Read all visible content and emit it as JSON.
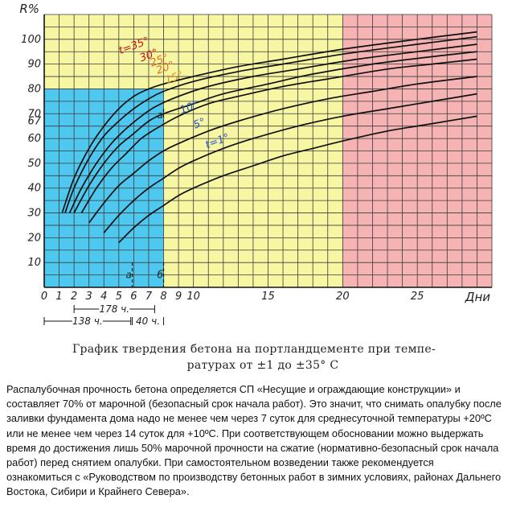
{
  "chart_data": {
    "type": "line",
    "xlabel": "Дни",
    "ylabel": "R%",
    "xlim": [
      0,
      30
    ],
    "ylim": [
      0,
      110
    ],
    "x_ticks": [
      "0",
      "1",
      "2",
      "3",
      "4",
      "5",
      "6",
      "7",
      "8",
      "9",
      "10",
      "15",
      "20",
      "25"
    ],
    "y_ticks": [
      "10",
      "20",
      "30",
      "40",
      "50",
      "60",
      "67",
      "70",
      "80",
      "90",
      "100"
    ],
    "zones": [
      {
        "from_x": 0,
        "to_x": 8,
        "to_y": 80,
        "color": "#4ec8ee"
      },
      {
        "from_x": 0,
        "to_x": 20,
        "to_y": 110,
        "color": "#f7f7a3"
      },
      {
        "from_x": 20,
        "to_x": 30,
        "to_y": 110,
        "color": "#f5b3b3"
      }
    ],
    "series": [
      {
        "name": "t=35°",
        "label_color": "#cc1111",
        "x": [
          1.2,
          2,
          3,
          4,
          5,
          6,
          7,
          8,
          10,
          13,
          16,
          20,
          25,
          29
        ],
        "y": [
          30,
          44,
          56,
          65,
          72,
          77,
          80,
          82,
          85,
          89,
          92,
          96,
          100,
          103
        ]
      },
      {
        "name": "30°",
        "label_color": "#cc1111",
        "x": [
          1.4,
          2,
          3,
          4,
          5,
          6,
          7,
          8,
          10,
          13,
          16,
          20,
          25,
          29
        ],
        "y": [
          30,
          40,
          52,
          61,
          67,
          72,
          76,
          79,
          83,
          87,
          90,
          94,
          98,
          101
        ]
      },
      {
        "name": "25°",
        "label_color": "#e07020",
        "x": [
          1.7,
          2.5,
          3.5,
          4.5,
          5.5,
          6.5,
          7.5,
          9,
          11,
          14,
          17,
          21,
          25,
          29
        ],
        "y": [
          30,
          40,
          50,
          58,
          64,
          69,
          73,
          77,
          81,
          85,
          88,
          92,
          95,
          98
        ]
      },
      {
        "name": "20°",
        "label_color": "#e07020",
        "x": [
          2,
          3,
          4,
          5,
          6,
          7,
          8,
          10,
          12,
          15,
          18,
          22,
          26,
          29
        ],
        "y": [
          30,
          41,
          50,
          57,
          62,
          67,
          70,
          74,
          78,
          82,
          86,
          90,
          93,
          95
        ]
      },
      {
        "name": "15°",
        "label_color": "#e09020",
        "x": [
          2.5,
          3.5,
          4.5,
          5.5,
          6.5,
          7.5,
          9,
          11,
          13,
          16,
          19,
          23,
          26,
          29
        ],
        "y": [
          30,
          40,
          48,
          54,
          60,
          64,
          69,
          74,
          77,
          81,
          84,
          88,
          90,
          92
        ]
      },
      {
        "name": "10°",
        "label_color": "#2255cc",
        "x": [
          3,
          4,
          5,
          6,
          7,
          8,
          9,
          11,
          13,
          16,
          19,
          22,
          25,
          29
        ],
        "y": [
          26,
          34,
          41,
          46,
          51,
          55,
          58,
          63,
          67,
          72,
          76,
          79,
          82,
          85
        ]
      },
      {
        "name": "5°",
        "label_color": "#2255cc",
        "x": [
          4,
          5,
          6,
          7,
          8,
          9,
          10,
          12,
          14,
          17,
          20,
          23,
          26,
          29
        ],
        "y": [
          22,
          29,
          35,
          40,
          44,
          48,
          51,
          56,
          60,
          65,
          69,
          72,
          75,
          78
        ]
      },
      {
        "name": "t=1°",
        "label_color": "#2255cc",
        "x": [
          5,
          6,
          7,
          8,
          9,
          10,
          12,
          14,
          16,
          18,
          20,
          23,
          26,
          29
        ],
        "y": [
          18,
          24,
          29,
          33,
          37,
          40,
          45,
          49,
          53,
          56,
          59,
          63,
          66,
          69
        ]
      }
    ],
    "markers": [
      {
        "label": "a",
        "x": 5.9,
        "y1": 0,
        "y2": 10
      },
      {
        "label": "б",
        "x": 8,
        "y1": 0,
        "y2": 10
      },
      {
        "label": "а",
        "x": 8,
        "y1": 67,
        "y2": 72
      }
    ],
    "annotations": [
      {
        "text": "178 ч.",
        "from_x": 2,
        "to_x": 7.4,
        "row": 1
      },
      {
        "text": "138 ч.",
        "from_x": 0,
        "to_x": 5.8,
        "row": 2
      },
      {
        "text": "40 ч.",
        "from_x": 5.9,
        "to_x": 8,
        "row": 2
      }
    ]
  },
  "caption": {
    "line1": "График твердения бетона на портландцементе при темпе-",
    "line2": "ратурах от ±1 до ±35° С"
  },
  "description": "Распалубочная прочность бетона определяется СП «Несущие и ограждающие конструкции» и составляет 70% от марочной (безопасный срок начала работ). Это значит, что снимать опалубку после заливки фундамента дома надо не менее чем через 7 суток для среднесуточной температуры +20ºС или не менее чем через 14 суток для +10ºС. При соответствующем обосновании можно выдержать время до достижения лишь 50% марочной прочности на сжатие (нормативно-безопасный срок начала работ) перед снятием опалубки. При самостоятельном возведении также рекомендуется ознакомиться с «Руководством по производству бетонных работ в зимних условиях, районах Дальнего Востока, Сибири и Крайнего Севера»."
}
